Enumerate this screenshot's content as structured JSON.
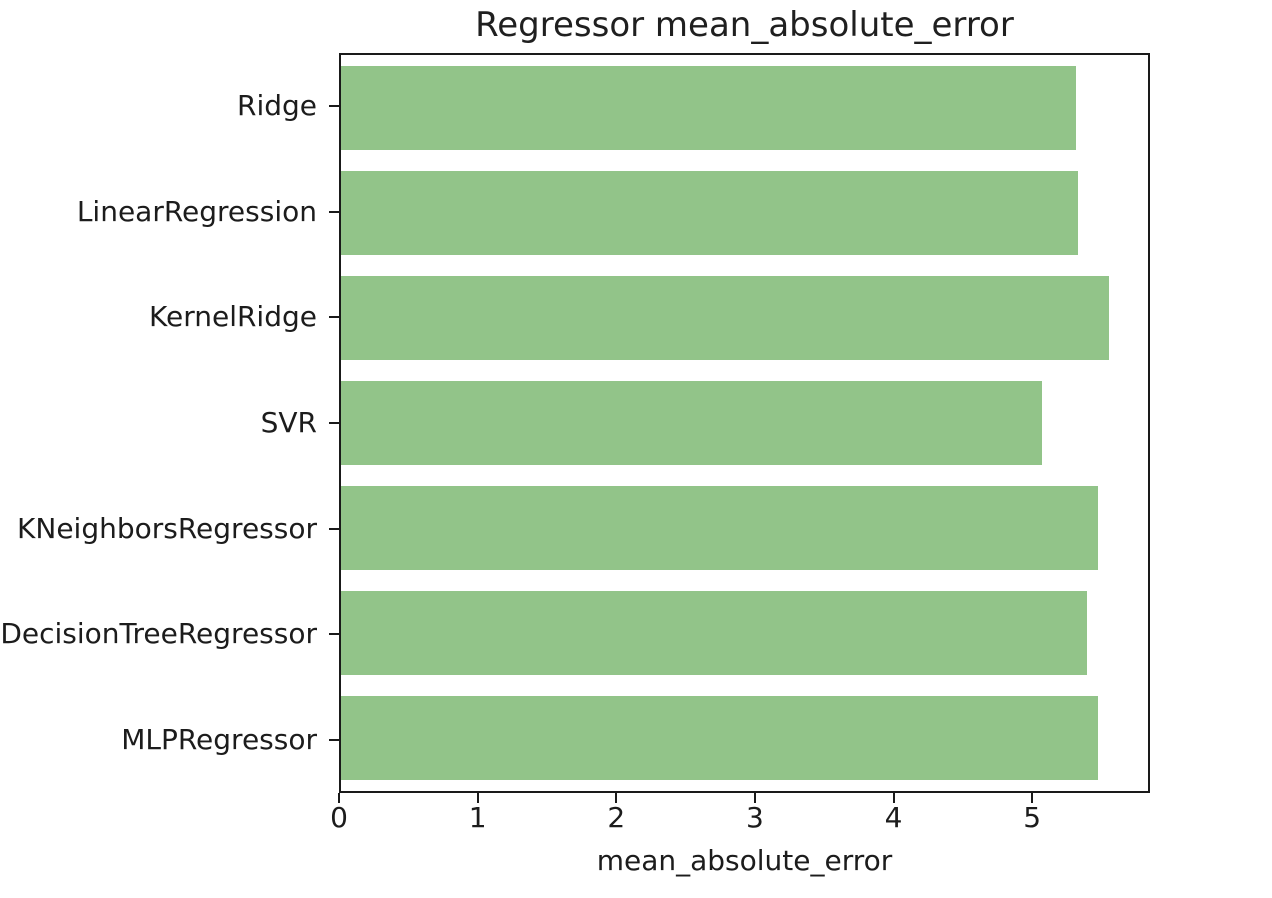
{
  "chart_data": {
    "type": "bar",
    "orientation": "horizontal",
    "title": "Regressor mean_absolute_error",
    "xlabel": "mean_absolute_error",
    "ylabel": "",
    "categories": [
      "Ridge",
      "LinearRegression",
      "KernelRidge",
      "SVR",
      "KNeighborsRegressor",
      "DecisionTreeRegressor",
      "MLPRegressor"
    ],
    "values": [
      5.33,
      5.34,
      5.57,
      5.08,
      5.49,
      5.41,
      5.49
    ],
    "xlim": [
      0,
      5.85
    ],
    "xticks": [
      0,
      1,
      2,
      3,
      4,
      5
    ],
    "bar_color": "#92c489",
    "bar_rel_height": 0.8,
    "grid": false,
    "legend": null,
    "spine_color": "#1a1a1a",
    "text_color": "#1c1c1c"
  }
}
